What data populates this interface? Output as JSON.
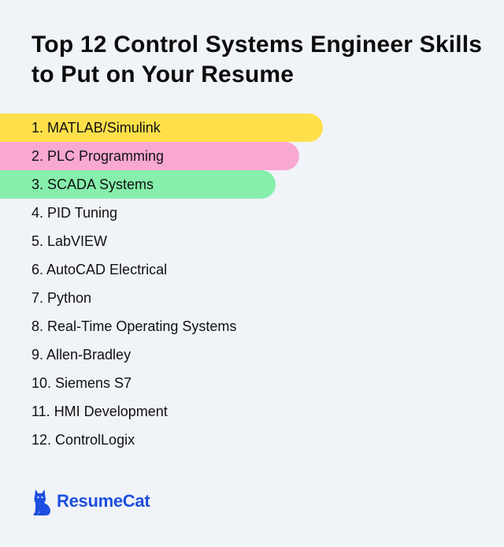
{
  "title": "Top 12 Control Systems Engineer Skills to Put on Your Resume",
  "skills": [
    {
      "label": "1. MATLAB/Simulink",
      "highlight": "#ffe04b"
    },
    {
      "label": "2. PLC Programming",
      "highlight": "#f9a8d4"
    },
    {
      "label": "3. SCADA Systems",
      "highlight": "#86efac"
    },
    {
      "label": "4. PID Tuning",
      "highlight": null
    },
    {
      "label": "5. LabVIEW",
      "highlight": null
    },
    {
      "label": "6. AutoCAD Electrical",
      "highlight": null
    },
    {
      "label": "7. Python",
      "highlight": null
    },
    {
      "label": "8. Real-Time Operating Systems",
      "highlight": null
    },
    {
      "label": "9. Allen-Bradley",
      "highlight": null
    },
    {
      "label": "10. Siemens S7",
      "highlight": null
    },
    {
      "label": "11. HMI Development",
      "highlight": null
    },
    {
      "label": "12. ControlLogix",
      "highlight": null
    }
  ],
  "brand": {
    "name": "ResumeCat",
    "icon": "cat-icon",
    "color": "#1e4fe0"
  },
  "colors": {
    "background": "#f0f3f8",
    "text": "#111111"
  }
}
